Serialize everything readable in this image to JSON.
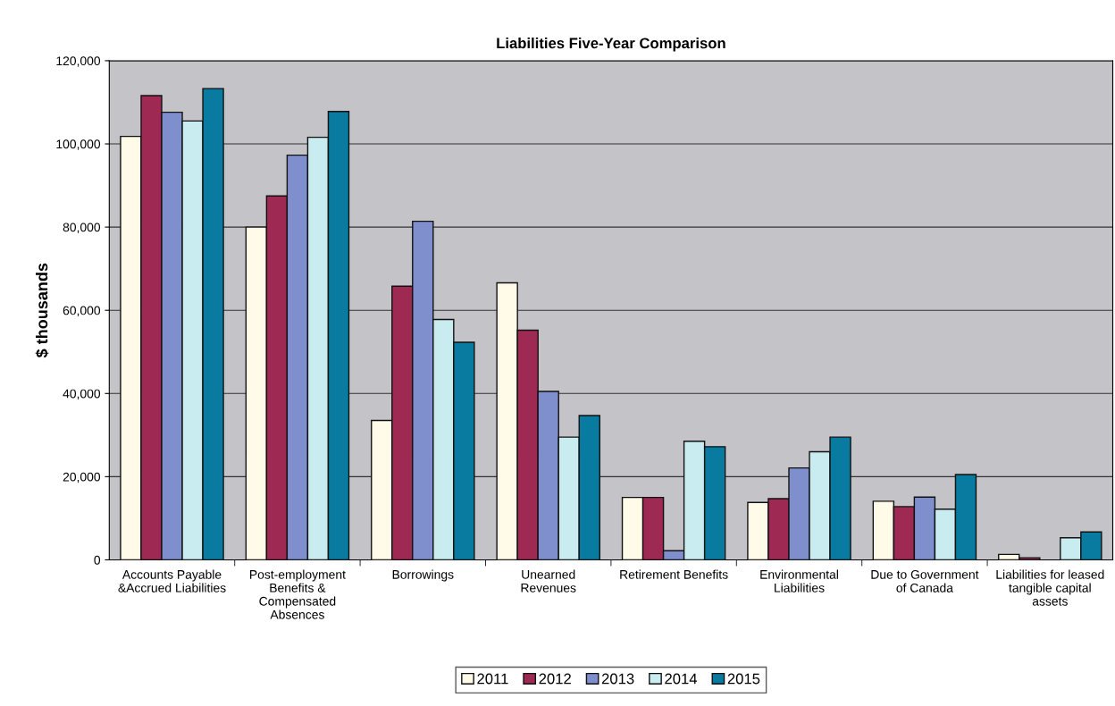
{
  "chart_data": {
    "type": "bar",
    "title": "Liabilities Five-Year Comparison",
    "ylabel": "$ thousands",
    "categories": [
      "Accounts Payable\n&Accrued Liabilities",
      "Post-employment\nBenefits &\nCompensated\nAbsences",
      "Borrowings",
      "Unearned\nRevenues",
      "Retirement Benefits",
      "Environmental\nLiabilities",
      "Due to Government\nof Canada",
      "Liabilities for leased\ntangible capital\nassets"
    ],
    "series": [
      {
        "name": "2011",
        "color": "#fffbe8",
        "values": [
          101800,
          80000,
          33500,
          66600,
          15000,
          13800,
          14100,
          1300
        ]
      },
      {
        "name": "2012",
        "color": "#9e2a54",
        "values": [
          111600,
          87500,
          65800,
          55200,
          15000,
          14700,
          12800,
          500
        ]
      },
      {
        "name": "2013",
        "color": "#7f8fce",
        "values": [
          107600,
          97300,
          81400,
          40500,
          2200,
          22100,
          15100,
          null
        ]
      },
      {
        "name": "2014",
        "color": "#c8ecef",
        "values": [
          105500,
          101600,
          57800,
          29500,
          28500,
          26000,
          12200,
          5300
        ]
      },
      {
        "name": "2015",
        "color": "#0a7ba0",
        "values": [
          113300,
          107800,
          52300,
          34700,
          27200,
          29500,
          20500,
          6700
        ]
      }
    ],
    "ylim": [
      0,
      120000
    ],
    "yticks": [
      {
        "value": 0,
        "label": "0"
      },
      {
        "value": 20000,
        "label": "20,000"
      },
      {
        "value": 40000,
        "label": "40,000"
      },
      {
        "value": 60000,
        "label": "60,000"
      },
      {
        "value": 80000,
        "label": "80,000"
      },
      {
        "value": 100000,
        "label": "100,000"
      },
      {
        "value": 120000,
        "label": "120,000"
      }
    ],
    "grid": "y",
    "legend": "bottom"
  }
}
